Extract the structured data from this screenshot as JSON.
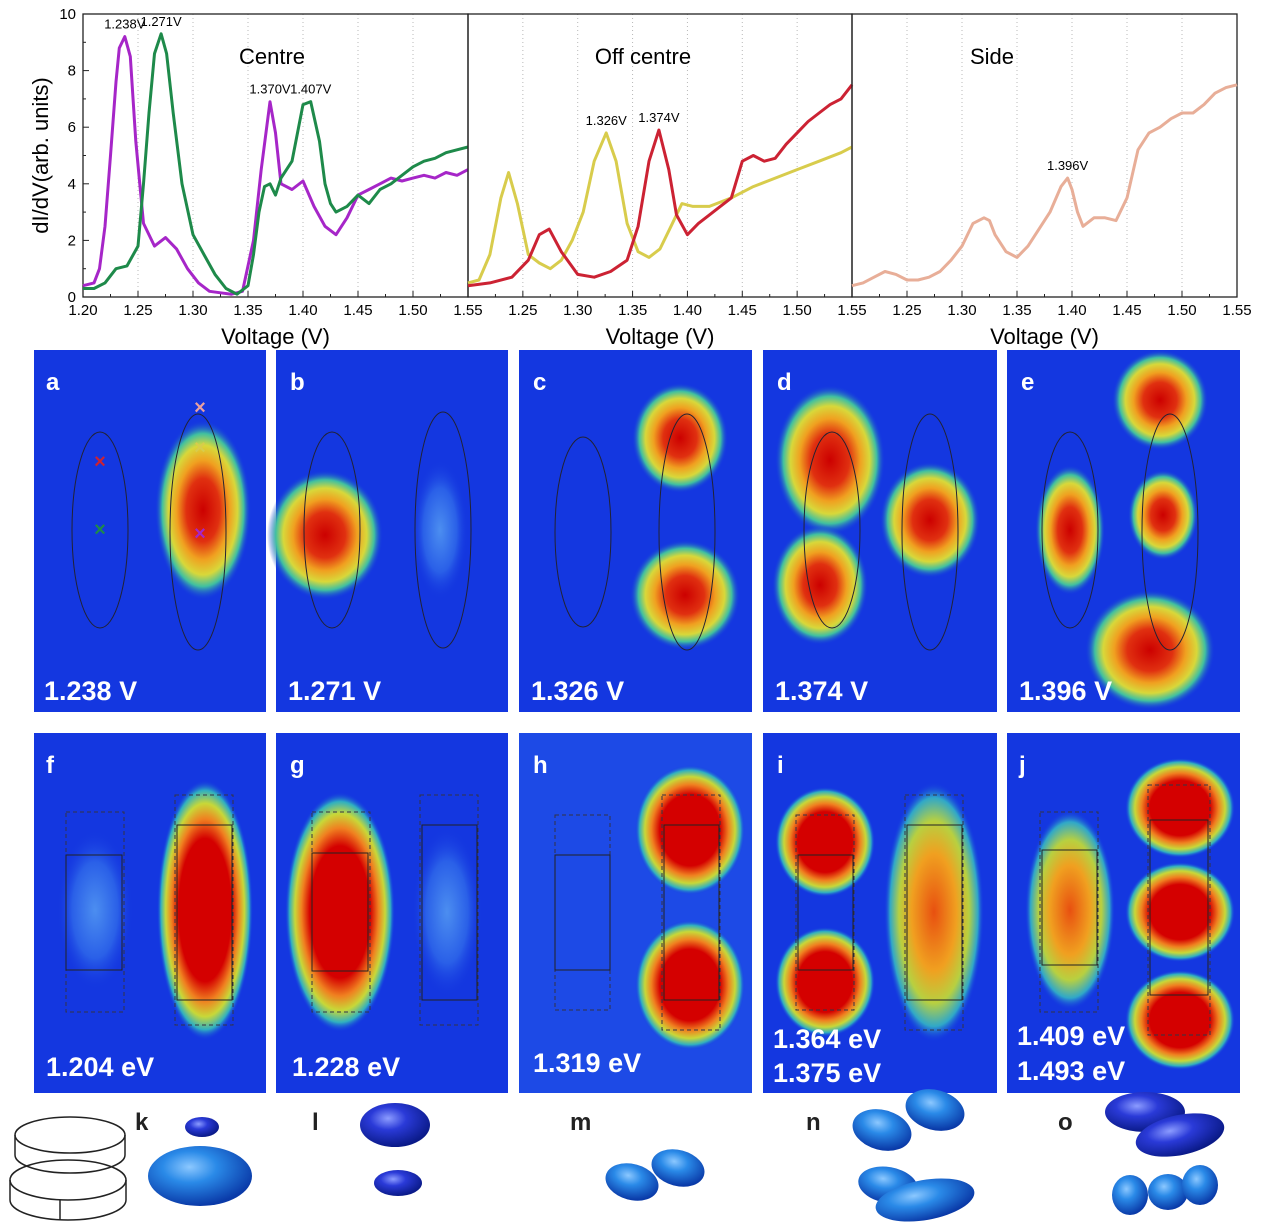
{
  "chart_data": [
    {
      "type": "line",
      "title": "Centre",
      "xlabel": "Voltage (V)",
      "ylabel": "dI/dV(arb. units)",
      "xlim": [
        1.2,
        1.55
      ],
      "ylim": [
        0,
        10
      ],
      "xticks": [
        "1.20",
        "1.25",
        "1.30",
        "1.35",
        "1.40",
        "1.45",
        "1.50"
      ],
      "yticks": [
        "0",
        "2",
        "4",
        "6",
        "8",
        "10"
      ],
      "grid": "vertical dotted",
      "series": [
        {
          "color": "#a626c8",
          "x": [
            1.2,
            1.21,
            1.215,
            1.22,
            1.225,
            1.23,
            1.233,
            1.238,
            1.243,
            1.248,
            1.255,
            1.265,
            1.275,
            1.285,
            1.295,
            1.305,
            1.315,
            1.325,
            1.335,
            1.345,
            1.355,
            1.362,
            1.37,
            1.375,
            1.38,
            1.39,
            1.4,
            1.41,
            1.42,
            1.43,
            1.44,
            1.45,
            1.46,
            1.47,
            1.48,
            1.49,
            1.5,
            1.51,
            1.52,
            1.53,
            1.54,
            1.55
          ],
          "values": [
            0.4,
            0.5,
            1.0,
            2.5,
            5.0,
            7.6,
            8.8,
            9.2,
            8.5,
            5.5,
            2.6,
            1.8,
            2.1,
            1.7,
            1.0,
            0.5,
            0.2,
            0.15,
            0.1,
            0.2,
            2.0,
            4.5,
            6.9,
            5.8,
            4.0,
            3.8,
            4.1,
            3.2,
            2.5,
            2.2,
            2.8,
            3.6,
            3.8,
            4.0,
            4.2,
            4.1,
            4.2,
            4.3,
            4.2,
            4.4,
            4.3,
            4.5
          ]
        },
        {
          "color": "#1e8a4a",
          "x": [
            1.2,
            1.21,
            1.22,
            1.23,
            1.24,
            1.25,
            1.255,
            1.26,
            1.265,
            1.271,
            1.276,
            1.282,
            1.29,
            1.3,
            1.31,
            1.32,
            1.33,
            1.34,
            1.35,
            1.355,
            1.36,
            1.365,
            1.37,
            1.375,
            1.38,
            1.39,
            1.4,
            1.407,
            1.415,
            1.42,
            1.425,
            1.43,
            1.44,
            1.45,
            1.46,
            1.47,
            1.48,
            1.49,
            1.5,
            1.51,
            1.52,
            1.53,
            1.54,
            1.55
          ],
          "values": [
            0.3,
            0.3,
            0.5,
            1.0,
            1.1,
            1.8,
            4.0,
            6.5,
            8.6,
            9.3,
            8.6,
            6.5,
            4.0,
            2.2,
            1.5,
            0.8,
            0.3,
            0.1,
            0.4,
            1.5,
            3.0,
            3.9,
            4.0,
            3.6,
            4.2,
            4.8,
            6.8,
            6.9,
            5.5,
            4.0,
            3.3,
            3.0,
            3.2,
            3.6,
            3.3,
            3.8,
            4.0,
            4.3,
            4.6,
            4.8,
            4.9,
            5.1,
            5.2,
            5.3
          ]
        }
      ],
      "annotations": [
        {
          "x": 1.238,
          "y": 9.2,
          "text": "1.238V"
        },
        {
          "x": 1.271,
          "y": 9.3,
          "text": "1.271V"
        },
        {
          "x": 1.37,
          "y": 6.9,
          "text": "1.370V"
        },
        {
          "x": 1.407,
          "y": 6.9,
          "text": "1.407V"
        }
      ]
    },
    {
      "type": "line",
      "title": "Off centre",
      "xlabel": "Voltage (V)",
      "xlim": [
        1.2,
        1.55
      ],
      "ylim": [
        0,
        10
      ],
      "xticks": [
        "1.55",
        "1.25",
        "1.30",
        "1.35",
        "1.40",
        "1.45",
        "1.50"
      ],
      "grid": "vertical dotted",
      "series": [
        {
          "color": "#d8cc4c",
          "x": [
            1.2,
            1.21,
            1.22,
            1.23,
            1.237,
            1.245,
            1.255,
            1.265,
            1.275,
            1.285,
            1.295,
            1.305,
            1.315,
            1.326,
            1.335,
            1.345,
            1.355,
            1.365,
            1.375,
            1.385,
            1.395,
            1.405,
            1.42,
            1.44,
            1.46,
            1.48,
            1.5,
            1.52,
            1.54,
            1.55
          ],
          "values": [
            0.5,
            0.6,
            1.5,
            3.5,
            4.4,
            3.3,
            1.5,
            1.2,
            1.0,
            1.3,
            2.0,
            3.0,
            4.8,
            5.8,
            4.8,
            2.6,
            1.6,
            1.4,
            1.7,
            2.5,
            3.3,
            3.2,
            3.2,
            3.5,
            3.9,
            4.2,
            4.5,
            4.8,
            5.1,
            5.3
          ]
        },
        {
          "color": "#cc2233",
          "x": [
            1.2,
            1.22,
            1.24,
            1.255,
            1.265,
            1.274,
            1.285,
            1.3,
            1.315,
            1.33,
            1.345,
            1.355,
            1.365,
            1.374,
            1.383,
            1.39,
            1.4,
            1.41,
            1.42,
            1.43,
            1.44,
            1.45,
            1.46,
            1.47,
            1.48,
            1.49,
            1.5,
            1.51,
            1.52,
            1.53,
            1.54,
            1.55
          ],
          "values": [
            0.4,
            0.5,
            0.7,
            1.3,
            2.2,
            2.4,
            1.6,
            0.8,
            0.7,
            0.9,
            1.3,
            2.5,
            4.8,
            5.9,
            4.5,
            2.9,
            2.2,
            2.6,
            2.9,
            3.2,
            3.5,
            4.8,
            5.0,
            4.8,
            4.9,
            5.4,
            5.8,
            6.2,
            6.5,
            6.8,
            7.0,
            7.5
          ]
        }
      ],
      "annotations": [
        {
          "x": 1.326,
          "y": 5.8,
          "text": "1.326V"
        },
        {
          "x": 1.374,
          "y": 5.9,
          "text": "1.374V"
        }
      ]
    },
    {
      "type": "line",
      "title": "Side",
      "xlabel": "Voltage (V)",
      "xlim": [
        1.2,
        1.55
      ],
      "ylim": [
        0,
        10
      ],
      "xticks": [
        "1.55",
        "1.25",
        "1.30",
        "1.35",
        "1.40",
        "1.45",
        "1.50",
        "1.55"
      ],
      "grid": "vertical dotted",
      "series": [
        {
          "color": "#e8ae98",
          "x": [
            1.2,
            1.21,
            1.22,
            1.23,
            1.24,
            1.25,
            1.26,
            1.27,
            1.28,
            1.29,
            1.3,
            1.31,
            1.32,
            1.325,
            1.33,
            1.34,
            1.35,
            1.36,
            1.37,
            1.38,
            1.39,
            1.396,
            1.4,
            1.405,
            1.41,
            1.42,
            1.43,
            1.44,
            1.45,
            1.46,
            1.47,
            1.48,
            1.49,
            1.5,
            1.51,
            1.52,
            1.53,
            1.54,
            1.55
          ],
          "values": [
            0.4,
            0.5,
            0.7,
            0.9,
            0.8,
            0.6,
            0.6,
            0.7,
            0.9,
            1.3,
            1.8,
            2.6,
            2.8,
            2.7,
            2.2,
            1.6,
            1.4,
            1.8,
            2.4,
            3.0,
            3.9,
            4.2,
            3.8,
            3.0,
            2.5,
            2.8,
            2.8,
            2.7,
            3.5,
            5.2,
            5.8,
            6.0,
            6.3,
            6.5,
            6.5,
            6.8,
            7.2,
            7.4,
            7.5
          ]
        }
      ],
      "annotations": [
        {
          "x": 1.396,
          "y": 4.2,
          "text": "1.396V"
        }
      ]
    }
  ],
  "panels": {
    "experiment": [
      {
        "letter": "a",
        "label": "1.238 V"
      },
      {
        "letter": "b",
        "label": "1.271 V"
      },
      {
        "letter": "c",
        "label": "1.326 V"
      },
      {
        "letter": "d",
        "label": "1.374 V"
      },
      {
        "letter": "e",
        "label": "1.396 V"
      }
    ],
    "simulation": [
      {
        "letter": "f",
        "label1": "1.204 eV",
        "label2": ""
      },
      {
        "letter": "g",
        "label1": "1.228 eV",
        "label2": ""
      },
      {
        "letter": "h",
        "label1": "1.319 eV",
        "label2": ""
      },
      {
        "letter": "i",
        "label1": "1.364 eV",
        "label2": "1.375 eV"
      },
      {
        "letter": "j",
        "label1": "1.409 eV",
        "label2": "1.493 eV"
      }
    ],
    "isosurface_letters": [
      "k",
      "l",
      "m",
      "n",
      "o"
    ]
  },
  "colors": {
    "map_background": "#1437e0",
    "map_hot": "#cc0000",
    "marker_colors": [
      "#e8a0a0",
      "#d8cc4c",
      "#cc2233",
      "#1e8a4a",
      "#a626c8"
    ]
  }
}
